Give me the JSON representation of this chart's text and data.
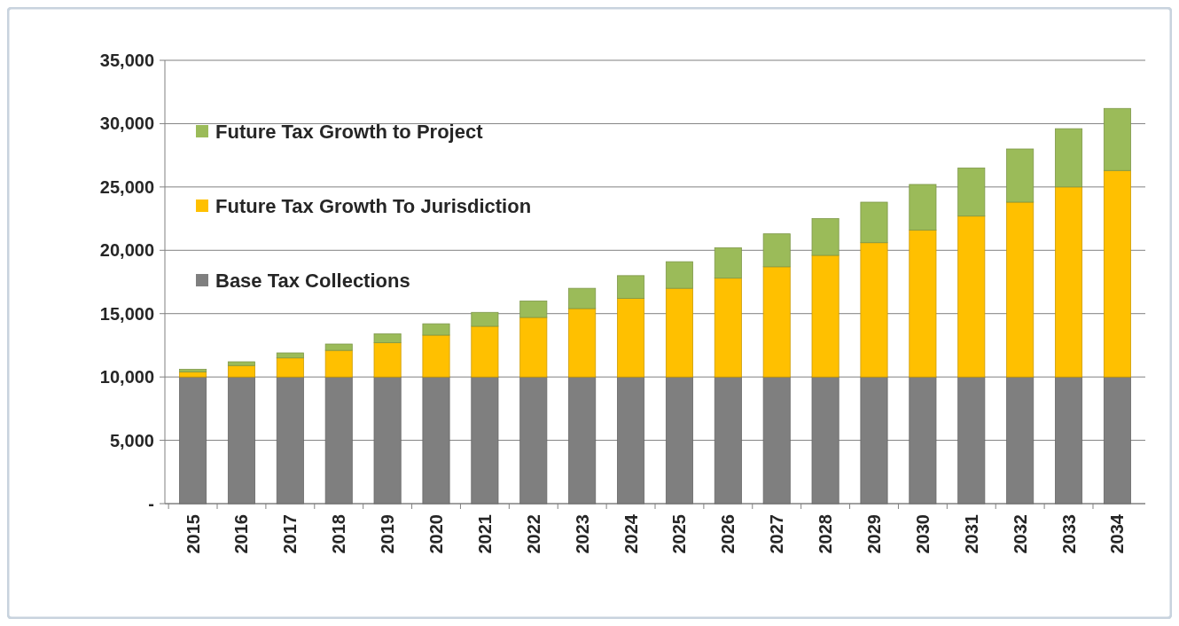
{
  "chart_data": {
    "type": "bar",
    "stacked": true,
    "categories": [
      "2015",
      "2016",
      "2017",
      "2018",
      "2019",
      "2020",
      "2021",
      "2022",
      "2023",
      "2024",
      "2025",
      "2026",
      "2027",
      "2028",
      "2029",
      "2030",
      "2031",
      "2032",
      "2033",
      "2034"
    ],
    "series": [
      {
        "name": "Base Tax Collections",
        "color": "#7f7f7f",
        "values": [
          10000,
          10000,
          10000,
          10000,
          10000,
          10000,
          10000,
          10000,
          10000,
          10000,
          10000,
          10000,
          10000,
          10000,
          10000,
          10000,
          10000,
          10000,
          10000,
          10000
        ]
      },
      {
        "name": "Future Tax Growth To Jurisdiction",
        "color": "#ffc000",
        "values": [
          400,
          900,
          1500,
          2100,
          2700,
          3300,
          4000,
          4700,
          5400,
          6200,
          7000,
          7800,
          8700,
          9600,
          10600,
          11600,
          12700,
          13800,
          15000,
          16300
        ]
      },
      {
        "name": "Future Tax Growth to Project",
        "color": "#9bbb59",
        "values": [
          200,
          300,
          400,
          500,
          700,
          900,
          1100,
          1300,
          1600,
          1800,
          2100,
          2400,
          2600,
          2900,
          3200,
          3600,
          3800,
          4200,
          4600,
          4900
        ]
      }
    ],
    "ylim": [
      0,
      35000
    ],
    "yticks": [
      {
        "value": 0,
        "label": "-"
      },
      {
        "value": 5000,
        "label": "5,000"
      },
      {
        "value": 10000,
        "label": "10,000"
      },
      {
        "value": 15000,
        "label": "15,000"
      },
      {
        "value": 20000,
        "label": "20,000"
      },
      {
        "value": 25000,
        "label": "25,000"
      },
      {
        "value": 30000,
        "label": "30,000"
      },
      {
        "value": 35000,
        "label": "35,000"
      }
    ],
    "grid": "y",
    "legend": "top left"
  }
}
